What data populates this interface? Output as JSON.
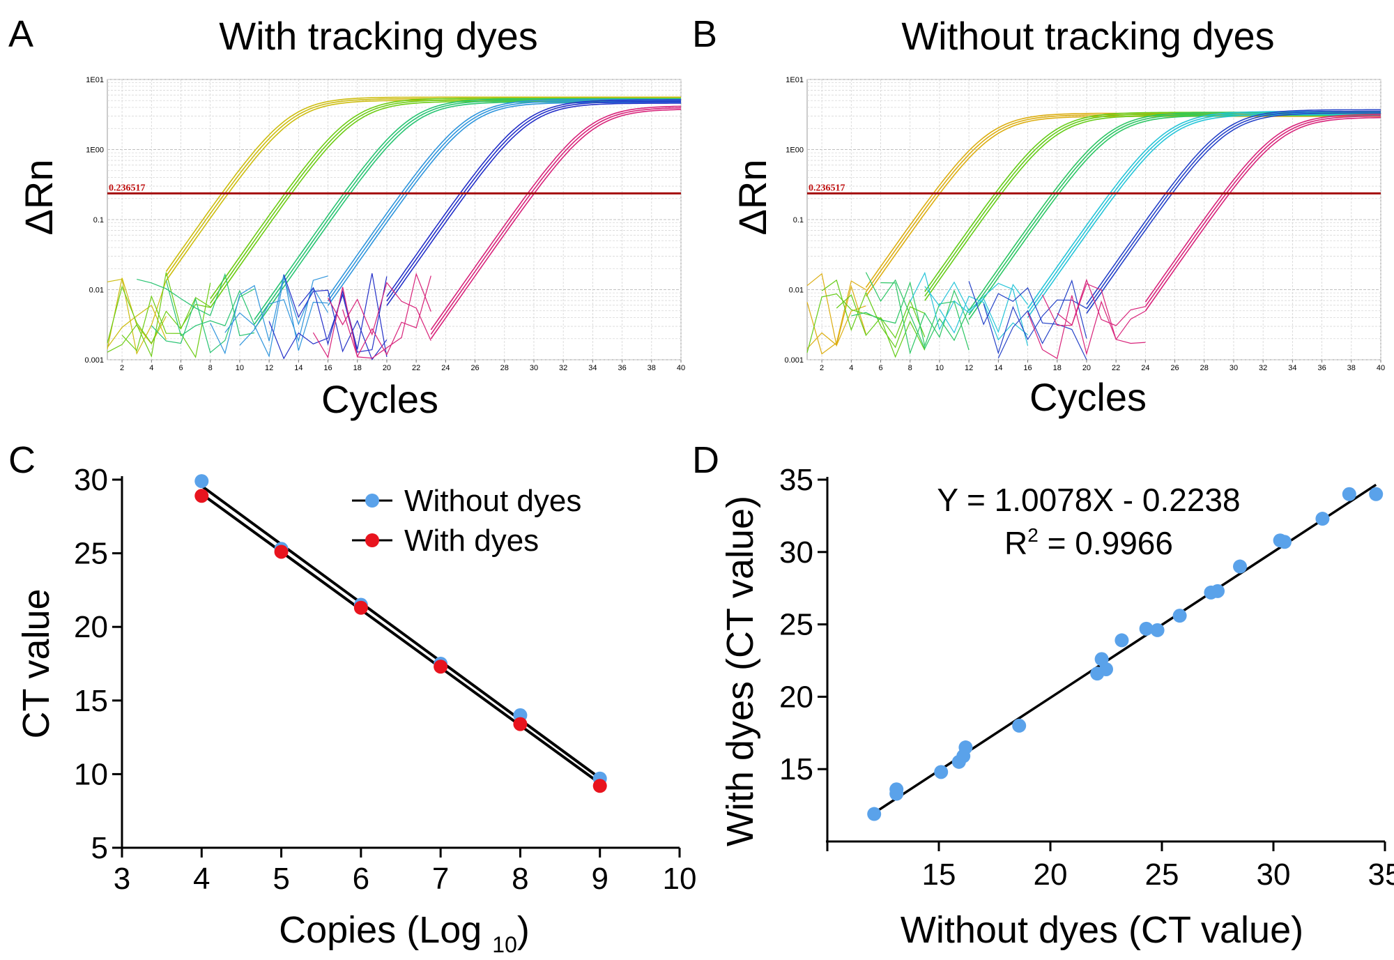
{
  "panels": {
    "A": {
      "letter": "A",
      "title": "With tracking dyes",
      "ylabel": "ΔRn",
      "xlabel": "Cycles",
      "threshold_label": "0.236517",
      "ytick_labels": [
        "1E01",
        "1E00",
        "0.1",
        "0.01",
        "0.001"
      ],
      "xtick_labels": [
        "2",
        "4",
        "6",
        "8",
        "10",
        "12",
        "14",
        "16",
        "18",
        "20",
        "22",
        "24",
        "26",
        "28",
        "30",
        "32",
        "34",
        "36",
        "38",
        "40"
      ]
    },
    "B": {
      "letter": "B",
      "title": "Without tracking dyes",
      "ylabel": "ΔRn",
      "xlabel": "Cycles",
      "threshold_label": "0.236517",
      "ytick_labels": [
        "1E01",
        "1E00",
        "0.1",
        "0.01",
        "0.001"
      ],
      "xtick_labels": [
        "2",
        "4",
        "6",
        "8",
        "10",
        "12",
        "14",
        "16",
        "18",
        "20",
        "22",
        "24",
        "26",
        "28",
        "30",
        "32",
        "34",
        "36",
        "38",
        "40"
      ]
    },
    "C": {
      "letter": "C"
    },
    "D": {
      "letter": "D",
      "equation": "Y = 1.0078X - 0.2238",
      "r2_label": "R",
      "r2_sup": "2",
      "r2_value": " = 0.9966"
    }
  },
  "chart_data": [
    {
      "type": "line",
      "title": "With tracking dyes",
      "xlabel": "Cycles",
      "ylabel": "ΔRn",
      "yscale": "log",
      "xlim": [
        1,
        40
      ],
      "ylim": [
        0.001,
        10
      ],
      "threshold": 0.236517,
      "threshold_color": "#a50f0f",
      "series": [
        {
          "color": "#cdbd10",
          "ct": 9.0,
          "plateau": 5.6,
          "start": 5,
          "replicates": 3
        },
        {
          "color": "#6dcc14",
          "ct": 13.3,
          "plateau": 5.4,
          "start": 8,
          "replicates": 3
        },
        {
          "color": "#28c472",
          "ct": 17.3,
          "plateau": 5.3,
          "start": 11,
          "replicates": 3
        },
        {
          "color": "#2f95dc",
          "ct": 21.2,
          "plateau": 5.2,
          "start": 16,
          "replicates": 3
        },
        {
          "color": "#2430c8",
          "ct": 25.2,
          "plateau": 5.1,
          "start": 20,
          "replicates": 3
        },
        {
          "color": "#d8237a",
          "ct": 29.8,
          "plateau": 4.2,
          "start": 23,
          "replicates": 3
        }
      ]
    },
    {
      "type": "line",
      "title": "Without tracking dyes",
      "xlabel": "Cycles",
      "ylabel": "ΔRn",
      "yscale": "log",
      "xlim": [
        1,
        40
      ],
      "ylim": [
        0.001,
        10
      ],
      "threshold": 0.236517,
      "threshold_color": "#a50f0f",
      "series": [
        {
          "color": "#dcae12",
          "ct": 9.8,
          "plateau": 3.3,
          "start": 5,
          "replicates": 3
        },
        {
          "color": "#64cc16",
          "ct": 14.0,
          "plateau": 3.4,
          "start": 9,
          "replicates": 3
        },
        {
          "color": "#2cc664",
          "ct": 17.9,
          "plateau": 3.4,
          "start": 12,
          "replicates": 3
        },
        {
          "color": "#26c4d8",
          "ct": 21.8,
          "plateau": 3.5,
          "start": 16,
          "replicates": 3
        },
        {
          "color": "#2643c8",
          "ct": 25.6,
          "plateau": 3.7,
          "start": 20,
          "replicates": 3
        },
        {
          "color": "#d8237a",
          "ct": 29.5,
          "plateau": 3.2,
          "start": 24,
          "replicates": 3
        }
      ]
    },
    {
      "type": "line",
      "xlabel": "Copies (Log 10)",
      "xlabel_main": "Copies (Log",
      "xlabel_sub": "10",
      "xlabel_close": ")",
      "ylabel": "CT value",
      "xlim": [
        3,
        10
      ],
      "ylim": [
        5,
        30
      ],
      "xticks": [
        3,
        4,
        5,
        6,
        7,
        8,
        9,
        10
      ],
      "yticks": [
        5,
        10,
        15,
        20,
        25,
        30
      ],
      "legend": "top-right",
      "series": [
        {
          "name": "Without dyes",
          "color": "#5aa2ea",
          "x": [
            4,
            5,
            6,
            7,
            8,
            9
          ],
          "y": [
            29.9,
            25.3,
            21.5,
            17.5,
            14.0,
            9.7
          ]
        },
        {
          "name": "With dyes",
          "color": "#e8141e",
          "x": [
            4,
            5,
            6,
            7,
            8,
            9
          ],
          "y": [
            28.9,
            25.1,
            21.3,
            17.3,
            13.4,
            9.2
          ]
        }
      ]
    },
    {
      "type": "scatter",
      "xlabel": "Without dyes (CT value)",
      "ylabel": "With dyes  (CT value)",
      "xlim": [
        10,
        35
      ],
      "ylim": [
        10,
        35
      ],
      "xticks": [
        15,
        20,
        25,
        30,
        35
      ],
      "yticks": [
        15,
        20,
        25,
        30,
        35
      ],
      "annotation": "Y = 1.0078X - 0.2238; R2 = 0.9966",
      "fit": {
        "slope": 1.0078,
        "intercept": -0.2238,
        "x_range": [
          12.0,
          34.6
        ]
      },
      "series": [
        {
          "color": "#5aa2ea",
          "x": [
            12.1,
            13.1,
            13.1,
            15.1,
            15.9,
            16.1,
            16.2,
            18.6,
            22.1,
            22.3,
            22.5,
            23.2,
            24.3,
            24.8,
            25.8,
            27.2,
            27.5,
            28.5,
            30.3,
            30.5,
            32.2,
            33.4,
            34.6
          ],
          "y": [
            11.9,
            13.3,
            13.6,
            14.8,
            15.5,
            15.9,
            16.5,
            18.0,
            21.6,
            22.6,
            21.9,
            23.9,
            24.7,
            24.6,
            25.6,
            27.2,
            27.3,
            29.0,
            30.8,
            30.7,
            32.3,
            34.0,
            34.0
          ]
        }
      ]
    }
  ]
}
